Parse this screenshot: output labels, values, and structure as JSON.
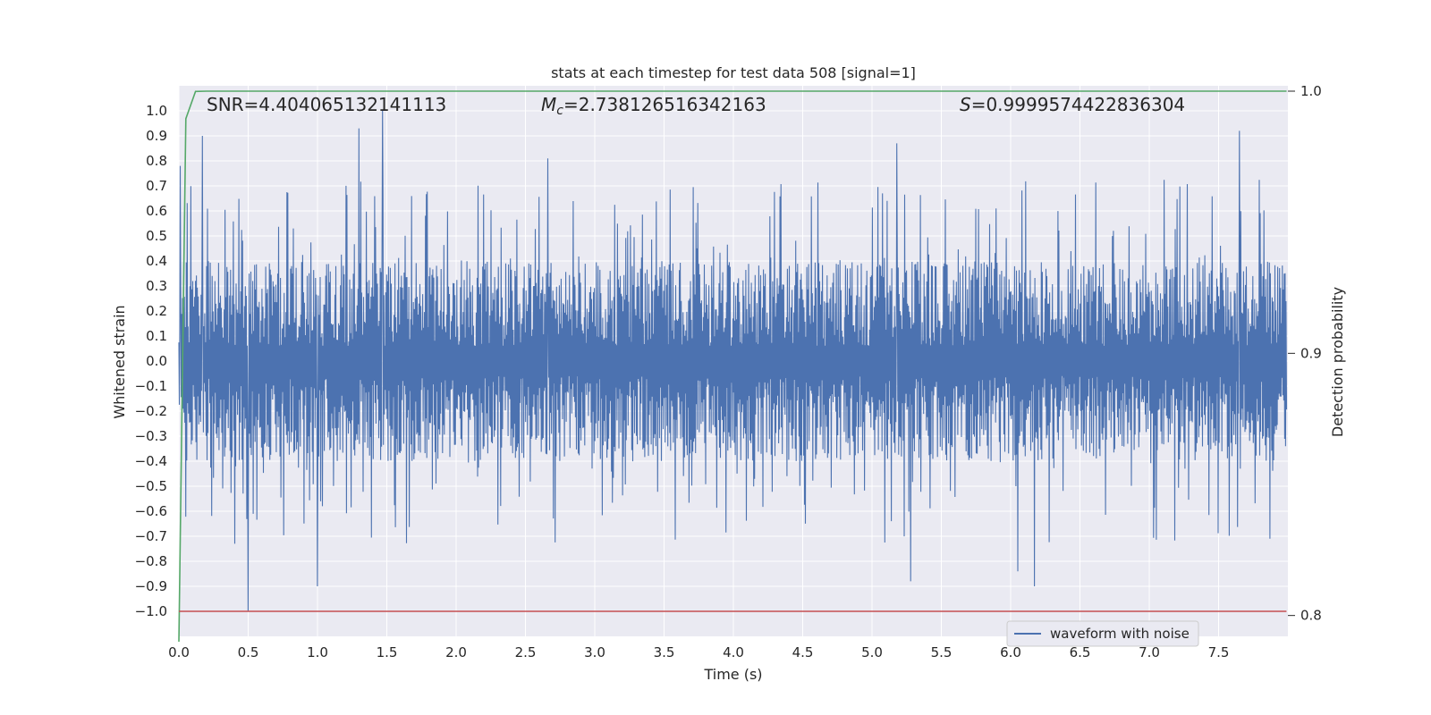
{
  "chart_data": {
    "type": "line",
    "title": "stats at each timestep for test data 508 [signal=1]",
    "xlabel": "Time (s)",
    "ylabel": "Whitened strain",
    "y2label": "Detection probability",
    "xlim": [
      0.0,
      8.0
    ],
    "ylim": [
      -1.1,
      1.1
    ],
    "y2lim": [
      0.79,
      1.0
    ],
    "x_ticks": [
      0.0,
      0.5,
      1.0,
      1.5,
      2.0,
      2.5,
      3.0,
      3.5,
      4.0,
      4.5,
      5.0,
      5.5,
      6.0,
      6.5,
      7.0,
      7.5
    ],
    "x_tick_labels": [
      "0.0",
      "0.5",
      "1.0",
      "1.5",
      "2.0",
      "2.5",
      "3.0",
      "3.5",
      "4.0",
      "4.5",
      "5.0",
      "5.5",
      "6.0",
      "6.5",
      "7.0",
      "7.5"
    ],
    "y_ticks": [
      1.0,
      0.9,
      0.8,
      0.7,
      0.6,
      0.5,
      0.4,
      0.3,
      0.2,
      0.1,
      0.0,
      -0.1,
      -0.2,
      -0.3,
      -0.4,
      -0.5,
      -0.6,
      -0.7,
      -0.8,
      -0.9,
      -1.0
    ],
    "y_tick_labels": [
      "1.0",
      "0.9",
      "0.8",
      "0.7",
      "0.6",
      "0.5",
      "0.4",
      "0.3",
      "0.2",
      "0.1",
      "0.0",
      "−0.1",
      "−0.2",
      "−0.3",
      "−0.4",
      "−0.5",
      "−0.6",
      "−0.7",
      "−0.8",
      "−0.9",
      "−1.0"
    ],
    "y2_ticks": [
      1.0,
      0.9,
      0.8
    ],
    "y2_tick_labels": [
      "1.0",
      "0.9",
      "0.8"
    ],
    "annotations": {
      "snr": "SNR=4.404065132141113",
      "mc_symbol": "M",
      "mc_subscript": "c",
      "mc_value": "=2.738126516342163",
      "s_symbol": "S",
      "s_value": "=0.9999574422836304"
    },
    "legend": {
      "placement": "lower-right",
      "entries": [
        "waveform with noise"
      ]
    },
    "grid": true,
    "series": [
      {
        "name": "waveform with noise",
        "axis": "left",
        "color": "#4C72B0",
        "style": "dense noisy waveform",
        "x_range": [
          0.0,
          7.99
        ],
        "typical_envelope": [
          -0.4,
          0.4
        ],
        "max": 1.0,
        "min": -1.0,
        "peaks": [
          {
            "x": 0.01,
            "y": 0.78
          },
          {
            "x": 0.17,
            "y": 0.9
          },
          {
            "x": 1.3,
            "y": 0.93
          },
          {
            "x": 1.47,
            "y": 1.0
          },
          {
            "x": 2.66,
            "y": 0.81
          },
          {
            "x": 5.18,
            "y": 0.87
          },
          {
            "x": 7.65,
            "y": 0.92
          },
          {
            "x": 0.5,
            "y": -1.0
          },
          {
            "x": 1.0,
            "y": -0.9
          },
          {
            "x": 5.28,
            "y": -0.88
          },
          {
            "x": 6.17,
            "y": -0.9
          },
          {
            "x": 6.05,
            "y": -0.84
          }
        ]
      },
      {
        "axis": "right",
        "color": "#55A868",
        "x": [
          0.0,
          0.05,
          0.12,
          0.2,
          1.0,
          2.0,
          3.0,
          4.0,
          5.0,
          6.0,
          7.0,
          7.99
        ],
        "values": [
          0.79,
          0.9895,
          0.9999,
          1.0,
          1.0,
          1.0,
          1.0,
          1.0,
          1.0,
          1.0,
          1.0,
          1.0
        ]
      },
      {
        "axis": "left",
        "color": "#C44E52",
        "style": "horizontal threshold line",
        "x": [
          0.0,
          7.99
        ],
        "values": [
          -1.0,
          -1.0
        ]
      }
    ],
    "colors": {
      "plot_background": "#EAEAF2",
      "grid": "#FFFFFF"
    }
  }
}
